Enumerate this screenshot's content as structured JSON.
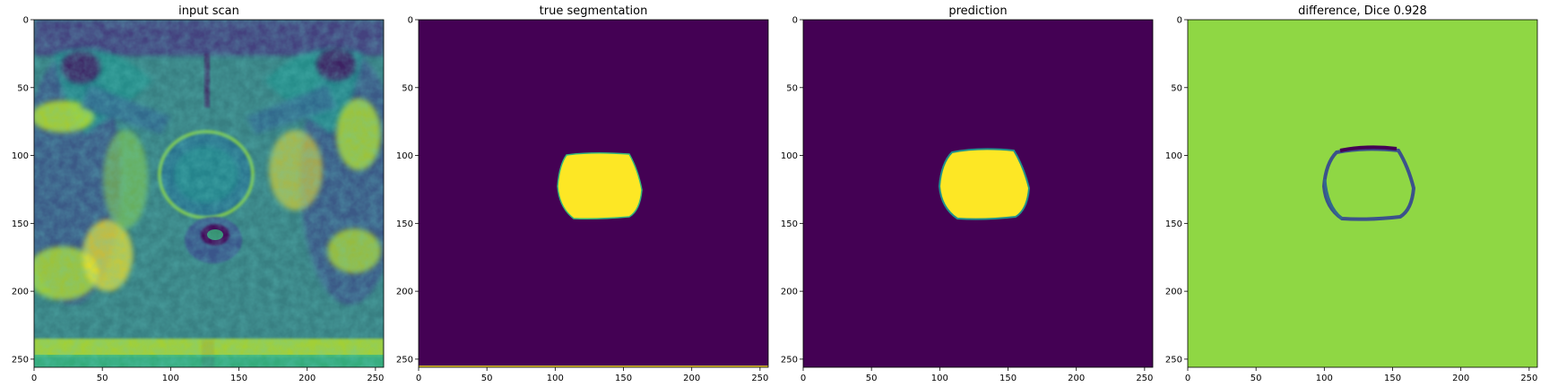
{
  "figure": {
    "panels": [
      {
        "title": "input scan",
        "kind": "mri",
        "x_ticks": [
          0,
          50,
          100,
          150,
          200,
          250
        ],
        "y_ticks": [
          0,
          50,
          100,
          150,
          200,
          250
        ]
      },
      {
        "title": "true segmentation",
        "kind": "mask",
        "x_ticks": [
          0,
          50,
          100,
          150,
          200,
          250
        ],
        "y_ticks": [
          0,
          50,
          100,
          150,
          200,
          250
        ]
      },
      {
        "title": "prediction",
        "kind": "mask",
        "x_ticks": [
          0,
          50,
          100,
          150,
          200,
          250
        ],
        "y_ticks": [
          0,
          50,
          100,
          150,
          200,
          250
        ]
      },
      {
        "title": "difference, Dice 0.928",
        "kind": "difference",
        "x_ticks": [
          0,
          50,
          100,
          150,
          200,
          250
        ],
        "y_ticks": [
          0,
          50,
          100,
          150,
          200,
          250
        ]
      }
    ],
    "image_extent": [
      0,
      256
    ],
    "colormap": "viridis",
    "colors": {
      "viridis_low": "#440154",
      "viridis_dark_blue": "#31688e",
      "viridis_mid": "#21918c",
      "viridis_green": "#35b779",
      "viridis_lime": "#8fd744",
      "viridis_high": "#fde725",
      "axes_edge": "#000000",
      "tick_text": "#000000"
    }
  }
}
